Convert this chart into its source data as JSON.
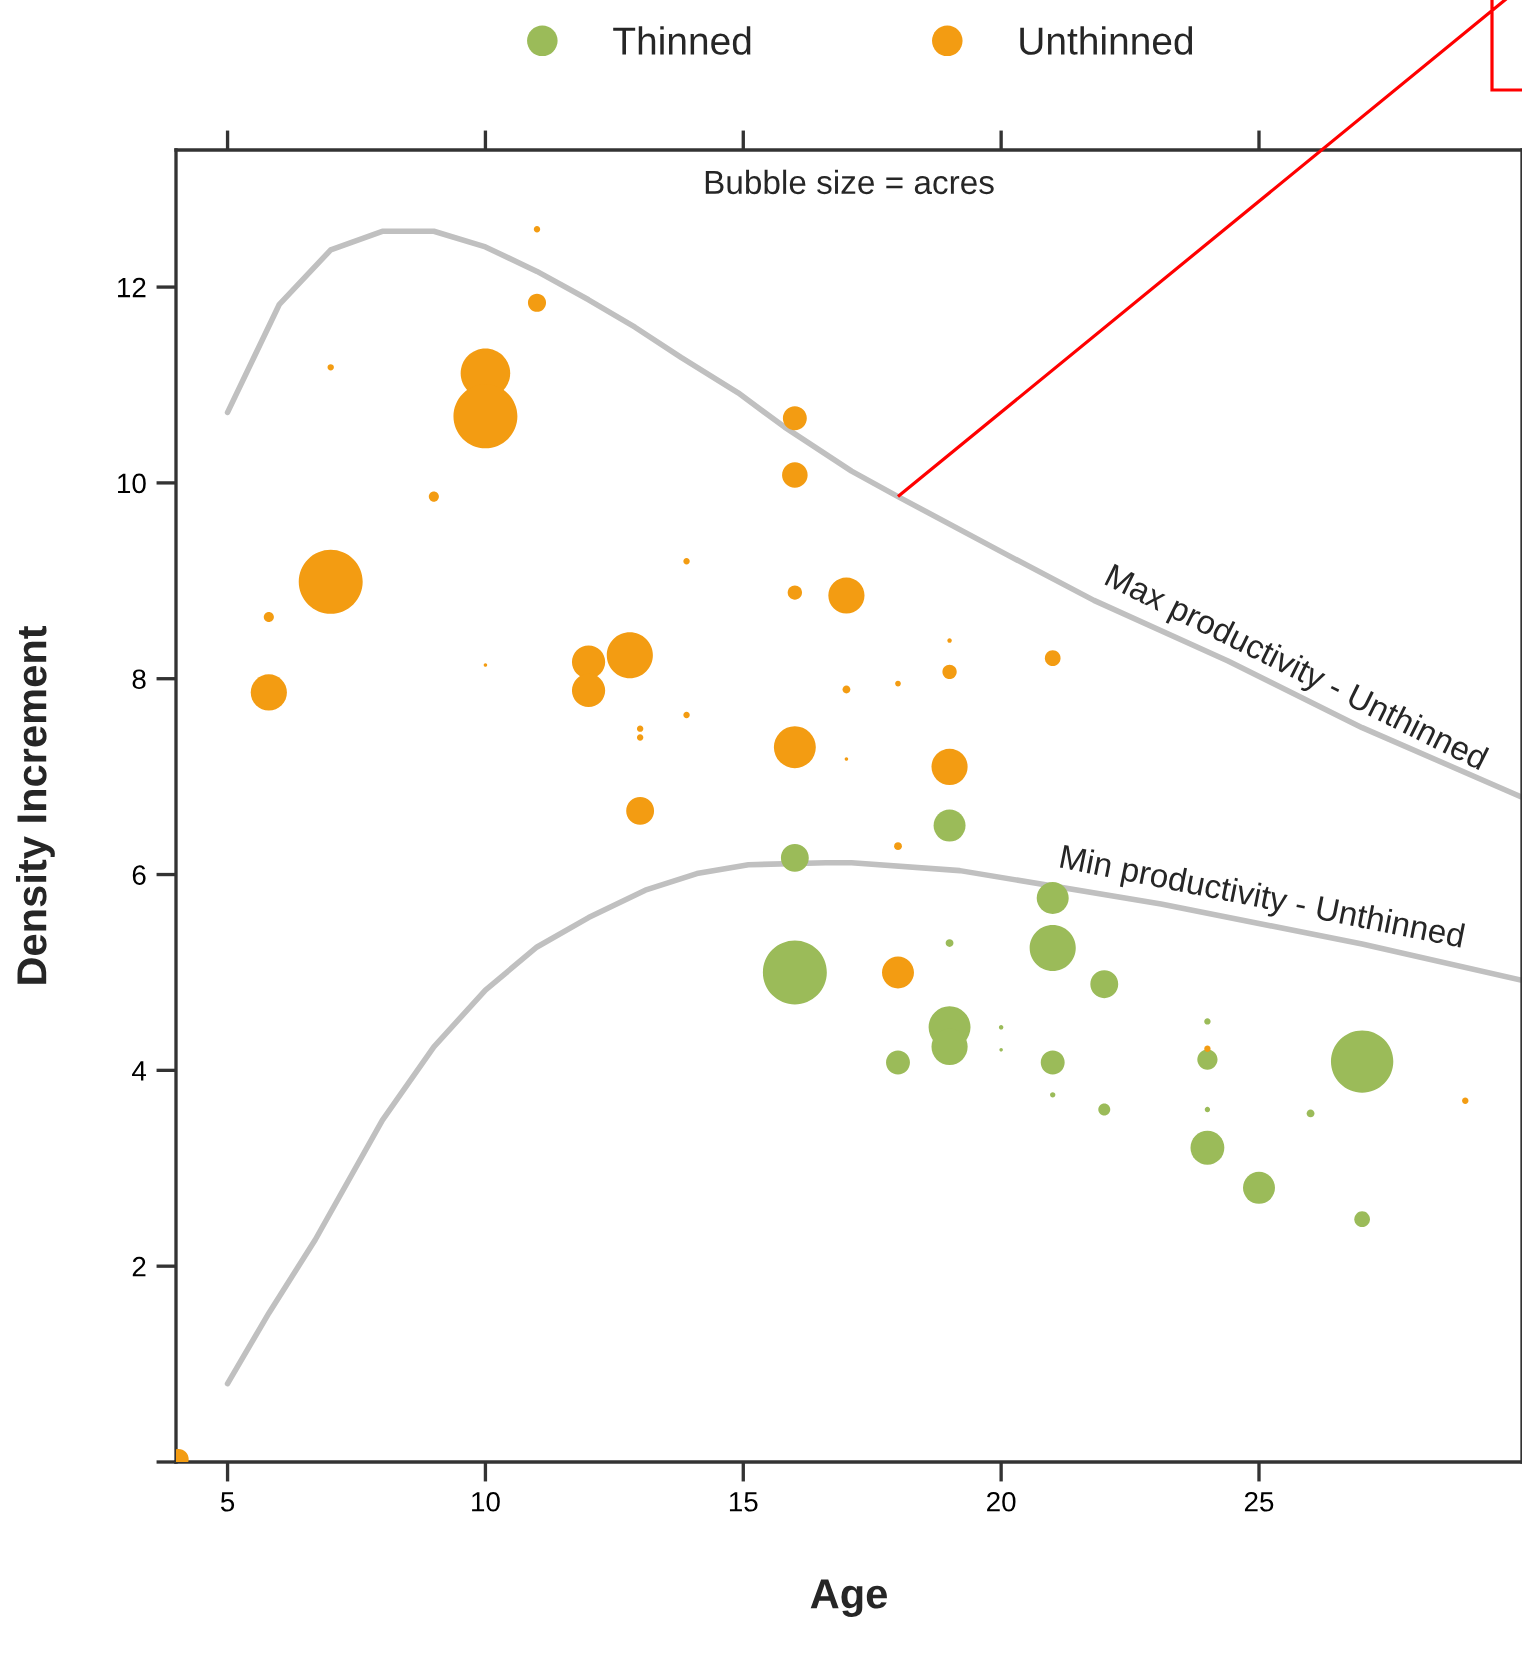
{
  "chart_data": {
    "type": "bubble",
    "xlabel": "Age",
    "ylabel": "Density Increment",
    "annotations": [
      "Bubble size = acres"
    ],
    "xlim": [
      4,
      30.1
    ],
    "xticks": [
      5,
      10,
      15,
      20,
      25
    ],
    "ylim": [
      0,
      13.4
    ],
    "yticks": [
      {
        "value": 0,
        "label": null
      },
      2,
      4,
      6,
      8,
      10,
      12
    ],
    "legend": "top",
    "grid": false,
    "series": [
      {
        "name": "Thinned",
        "color": "#9bbb59",
        "marker": "circle",
        "x": [
          16,
          16,
          19,
          21,
          21,
          19,
          22,
          19,
          19,
          20,
          20,
          18,
          21,
          21,
          22,
          24,
          24,
          24,
          26,
          27,
          24,
          25,
          27
        ],
        "values": [
          6.17,
          5.0,
          6.5,
          5.76,
          5.25,
          5.3,
          4.88,
          4.44,
          4.24,
          4.44,
          4.21,
          4.08,
          4.08,
          3.75,
          3.6,
          4.5,
          4.11,
          3.6,
          3.56,
          4.09,
          3.21,
          2.8,
          2.48
        ],
        "sizes": [
          0.19,
          1.0,
          0.25,
          0.25,
          0.52,
          0.015,
          0.19,
          0.43,
          0.32,
          0.005,
          0.003,
          0.14,
          0.14,
          0.007,
          0.035,
          0.01,
          0.1,
          0.007,
          0.015,
          0.95,
          0.28,
          0.25,
          0.06
        ]
      },
      {
        "name": "Unthinned",
        "color": "#f39c12",
        "marker": "circle",
        "x": [
          11,
          11,
          7,
          10,
          10,
          16,
          16,
          9,
          7,
          13.9,
          16,
          17,
          5.8,
          5.8,
          10,
          12,
          12,
          12.8,
          13.9,
          13,
          13,
          16,
          13,
          17,
          19,
          19,
          21,
          18,
          17,
          19,
          18,
          18,
          24,
          29,
          4.05
        ],
        "values": [
          12.59,
          11.84,
          11.18,
          11.12,
          10.68,
          10.66,
          10.08,
          9.86,
          8.99,
          9.2,
          8.88,
          8.85,
          8.63,
          7.86,
          8.14,
          8.17,
          7.88,
          8.24,
          7.63,
          7.49,
          7.4,
          7.3,
          6.65,
          7.89,
          8.39,
          8.07,
          8.21,
          7.95,
          7.18,
          7.1,
          6.29,
          5.0,
          4.22,
          3.69,
          0.03
        ],
        "sizes": [
          0.01,
          0.08,
          0.01,
          0.6,
          1.0,
          0.14,
          0.16,
          0.025,
          1.0,
          0.01,
          0.05,
          0.32,
          0.025,
          0.32,
          0.003,
          0.27,
          0.27,
          0.52,
          0.01,
          0.01,
          0.01,
          0.43,
          0.19,
          0.015,
          0.005,
          0.05,
          0.06,
          0.008,
          0.003,
          0.32,
          0.015,
          0.25,
          0.01,
          0.01,
          0.1
        ]
      },
      {
        "name": "Max productivity - Unthinned",
        "type": "line",
        "color": "#c0c0c0",
        "line_style": "solid",
        "x": [
          5,
          6,
          7,
          8,
          9,
          10,
          11,
          12,
          12.9,
          13.8,
          14.9,
          15.8,
          17.1,
          18,
          20.1,
          21.8,
          24.4,
          27,
          30.1
        ],
        "values": [
          10.72,
          11.82,
          12.38,
          12.57,
          12.57,
          12.41,
          12.16,
          11.87,
          11.59,
          11.28,
          10.92,
          10.57,
          10.12,
          9.86,
          9.27,
          8.8,
          8.18,
          7.5,
          6.79
        ]
      },
      {
        "name": "Min productivity - Unthinned",
        "type": "line",
        "color": "#c0c0c0",
        "line_style": "solid",
        "x": [
          5,
          5.8,
          6.7,
          8,
          9,
          10,
          11,
          12,
          13.1,
          14.1,
          15.1,
          16.6,
          17.1,
          19.2,
          23.1,
          27,
          30.1
        ],
        "values": [
          0.8,
          1.52,
          2.27,
          3.49,
          4.24,
          4.82,
          5.26,
          5.56,
          5.84,
          6.01,
          6.1,
          6.12,
          6.12,
          6.04,
          5.7,
          5.29,
          4.92
        ]
      }
    ]
  }
}
